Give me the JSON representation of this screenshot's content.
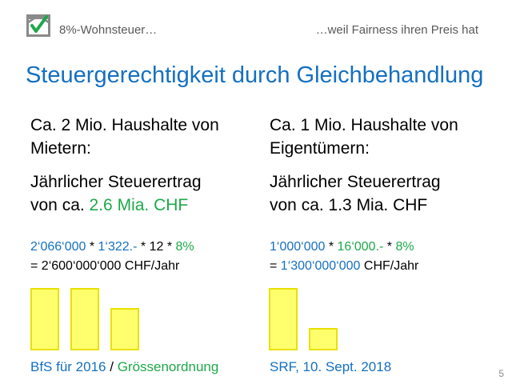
{
  "header": {
    "left_text": "8%-Wohnsteuer…",
    "right_text": "…weil Fairness ihren Preis hat"
  },
  "title": "Steuergerechtigkeit durch Gleichbehandlung",
  "left": {
    "households_line1": "Ca. 2 Mio. Haushalte von",
    "households_line2": "Mietern:",
    "yield_line1": "Jährlicher Steuerertrag",
    "yield_prefix": "von ca. ",
    "yield_value": "2.6 Mia. CHF",
    "formula": {
      "a": "2‘066‘000",
      "op1": " * ",
      "b": "1‘322.-",
      "op2": " * 12 * ",
      "rate": "8%"
    },
    "result": "= 2‘600‘000‘000 CHF/Jahr",
    "source": {
      "part1": "BfS für 2016",
      "sep": " / ",
      "part2": "Grössenordnung"
    }
  },
  "right": {
    "households_line1": "Ca. 1 Mio. Haushalte von",
    "households_line2": "Eigentümern:",
    "yield_line1": "Jährlicher Steuerertrag",
    "yield_line2": "von ca. 1.3 Mia. CHF",
    "formula": {
      "a": "1‘000‘000",
      "op1": " * ",
      "b": "16‘000.-",
      "op2": " * ",
      "rate": "8%"
    },
    "result_prefix": "= ",
    "result_value": "1‘300‘000‘000",
    "result_suffix": " CHF/Jahr",
    "source": "SRF, 10. Sept. 2018"
  },
  "page_number": "5",
  "colors": {
    "blue": "#1570c0",
    "green": "#1ea84a",
    "bar_fill": "#ffff6e",
    "bar_border": "#e9e100"
  },
  "icons": {
    "logo": "house-checkmark-icon"
  }
}
